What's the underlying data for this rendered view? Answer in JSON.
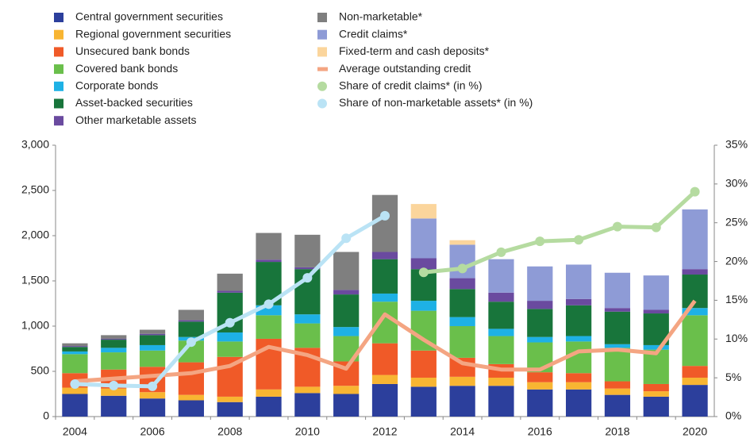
{
  "chart_data": {
    "type": "bar",
    "stacked": true,
    "categories": [
      "2004",
      null,
      "2006",
      null,
      "2008",
      null,
      "2010",
      null,
      "2012",
      null,
      "2014",
      null,
      "2016",
      null,
      "2018",
      null,
      "2020"
    ],
    "ylim": [
      0,
      3000
    ],
    "yticks": [
      0,
      500,
      {
        "value": 1000,
        "label": "1,000"
      },
      {
        "value": 1500,
        "label": "1,500"
      },
      {
        "value": 2000,
        "label": "2,000"
      },
      {
        "value": 2500,
        "label": "2,500"
      },
      {
        "value": 3000,
        "label": "3,000"
      }
    ],
    "y2lim": [
      0,
      35
    ],
    "y2ticks": [
      {
        "value": 0,
        "label": "0%"
      },
      {
        "value": 5,
        "label": "5%"
      },
      {
        "value": 10,
        "label": "10%"
      },
      {
        "value": 15,
        "label": "15%"
      },
      {
        "value": 20,
        "label": "20%"
      },
      {
        "value": 25,
        "label": "25%"
      },
      {
        "value": 30,
        "label": "30%"
      },
      {
        "value": 35,
        "label": "35%"
      }
    ],
    "legend": "top-left",
    "series": [
      {
        "name": "Central government securities",
        "type": "bar",
        "color": "#2c3f9c",
        "values": [
          250,
          230,
          200,
          180,
          160,
          220,
          260,
          250,
          360,
          330,
          340,
          340,
          300,
          300,
          240,
          220,
          350
        ]
      },
      {
        "name": "Regional government securities",
        "type": "bar",
        "color": "#f8b532",
        "values": [
          70,
          80,
          70,
          60,
          60,
          80,
          70,
          90,
          100,
          100,
          100,
          90,
          80,
          80,
          70,
          60,
          80
        ]
      },
      {
        "name": "Unsecured bank bonds",
        "type": "bar",
        "color": "#f05a28",
        "values": [
          160,
          210,
          280,
          360,
          440,
          560,
          430,
          270,
          350,
          300,
          210,
          150,
          110,
          100,
          80,
          80,
          130
        ]
      },
      {
        "name": "Covered bank bonds",
        "type": "bar",
        "color": "#6abf4b",
        "values": [
          210,
          190,
          180,
          240,
          170,
          260,
          270,
          280,
          460,
          440,
          350,
          310,
          330,
          350,
          370,
          380,
          560
        ]
      },
      {
        "name": "Corporate bonds",
        "type": "bar",
        "color": "#1eb1e5",
        "values": [
          30,
          50,
          60,
          40,
          100,
          110,
          100,
          100,
          90,
          110,
          100,
          80,
          60,
          60,
          40,
          50,
          80
        ]
      },
      {
        "name": "Asset-backed securities",
        "type": "bar",
        "color": "#18753b",
        "values": [
          50,
          90,
          110,
          170,
          440,
          480,
          500,
          360,
          380,
          350,
          310,
          300,
          310,
          340,
          360,
          350,
          370
        ]
      },
      {
        "name": "Other marketable assets",
        "type": "bar",
        "color": "#6a4a9f",
        "values": [
          10,
          10,
          15,
          15,
          20,
          25,
          20,
          50,
          80,
          120,
          120,
          100,
          90,
          70,
          40,
          40,
          60
        ]
      },
      {
        "name": "Non-marketable*",
        "type": "bar",
        "color": "#7f7f7f",
        "values": [
          30,
          40,
          45,
          115,
          190,
          295,
          360,
          420,
          630,
          0,
          0,
          0,
          0,
          0,
          0,
          0,
          0
        ]
      },
      {
        "name": "Credit claims*",
        "type": "bar",
        "color": "#8e9bd6",
        "values": [
          0,
          0,
          0,
          0,
          0,
          0,
          0,
          0,
          0,
          440,
          370,
          370,
          380,
          380,
          390,
          380,
          660
        ]
      },
      {
        "name": "Fixed-term and cash deposits*",
        "type": "bar",
        "color": "#fbd59c",
        "values": [
          0,
          0,
          0,
          0,
          0,
          0,
          0,
          0,
          0,
          160,
          50,
          0,
          0,
          0,
          0,
          0,
          0
        ]
      },
      {
        "name": "Average outstanding credit",
        "type": "line",
        "color": "#f4a582",
        "values": [
          390,
          420,
          450,
          480,
          560,
          770,
          680,
          530,
          1130,
          850,
          590,
          520,
          520,
          720,
          740,
          700,
          1280
        ]
      },
      {
        "name": "Share of credit claims* (in %)",
        "type": "line",
        "marker": true,
        "axis": "y2",
        "color": "#b5dba0",
        "values": [
          null,
          null,
          null,
          null,
          null,
          null,
          null,
          null,
          null,
          18.6,
          19.1,
          21.2,
          22.6,
          22.8,
          24.5,
          24.4,
          29.0
        ]
      },
      {
        "name": "Share of non-marketable assets* (in %)",
        "type": "line",
        "marker": true,
        "axis": "y2",
        "color": "#bae3f5",
        "values": [
          4.2,
          4.0,
          3.9,
          9.6,
          12.1,
          14.5,
          17.9,
          23.0,
          25.9,
          null,
          null,
          null,
          null,
          null,
          null,
          null,
          null
        ]
      }
    ]
  }
}
